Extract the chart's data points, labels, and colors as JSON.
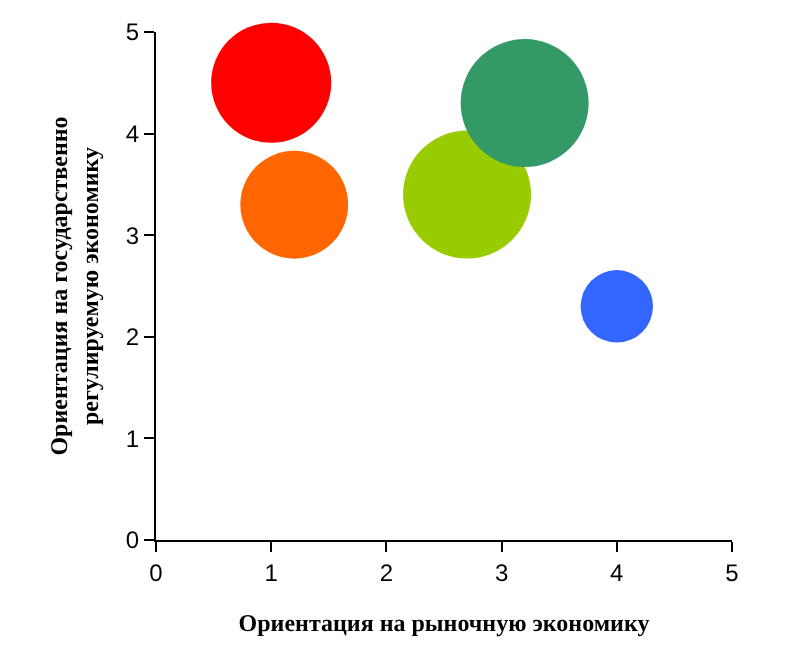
{
  "chart_data": {
    "type": "bubble",
    "xlabel": "Ориентация на рыночную экономику",
    "ylabel": "Ориентация на государственно\nрегулируемую экономику",
    "x": [
      1,
      1.2,
      2.7,
      3.2,
      4
    ],
    "values": [
      4.5,
      3.3,
      3.4,
      4.3,
      2.3
    ],
    "sizes": [
      0.88,
      0.71,
      1,
      1,
      0.32
    ],
    "colors": [
      "#ff0000",
      "#ff6600",
      "#99cc00",
      "#339966",
      "#3366ff"
    ],
    "xlim": [
      0,
      5
    ],
    "xticks": [
      0,
      1,
      2,
      3,
      4,
      5
    ],
    "ylim": [
      0,
      5
    ],
    "yticks": [
      0,
      1,
      2,
      3,
      4,
      5
    ],
    "grid": false
  }
}
